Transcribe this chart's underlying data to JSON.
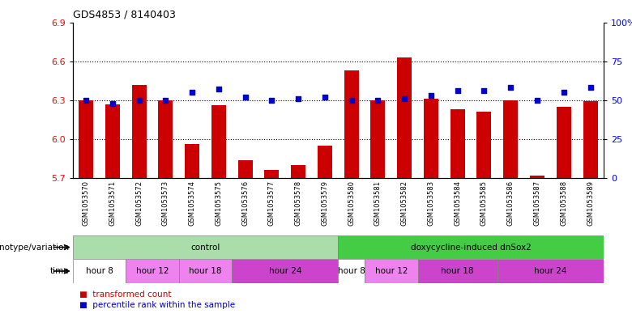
{
  "title": "GDS4853 / 8140403",
  "samples": [
    "GSM1053570",
    "GSM1053571",
    "GSM1053572",
    "GSM1053573",
    "GSM1053574",
    "GSM1053575",
    "GSM1053576",
    "GSM1053577",
    "GSM1053578",
    "GSM1053579",
    "GSM1053580",
    "GSM1053581",
    "GSM1053582",
    "GSM1053583",
    "GSM1053584",
    "GSM1053585",
    "GSM1053586",
    "GSM1053587",
    "GSM1053588",
    "GSM1053589"
  ],
  "bar_values": [
    6.3,
    6.27,
    6.42,
    6.3,
    5.96,
    6.26,
    5.84,
    5.76,
    5.8,
    5.95,
    6.53,
    6.3,
    6.63,
    6.31,
    6.23,
    6.21,
    6.3,
    5.72,
    6.25,
    6.29
  ],
  "dot_values": [
    50,
    48,
    50,
    50,
    55,
    57,
    52,
    50,
    51,
    52,
    50,
    50,
    51,
    53,
    56,
    56,
    58,
    50,
    55,
    58
  ],
  "ylim_left": [
    5.7,
    6.9
  ],
  "ylim_right": [
    0,
    100
  ],
  "yticks_left": [
    5.7,
    6.0,
    6.3,
    6.6,
    6.9
  ],
  "yticks_right": [
    0,
    25,
    50,
    75,
    100
  ],
  "bar_color": "#cc0000",
  "dot_color": "#0000cc",
  "genotype_groups": [
    {
      "label": "control",
      "start": 0,
      "end": 10,
      "color": "#aaddaa"
    },
    {
      "label": "doxycycline-induced dnSox2",
      "start": 10,
      "end": 20,
      "color": "#44cc44"
    }
  ],
  "time_groups": [
    {
      "label": "hour 8",
      "start": 0,
      "end": 2,
      "color": "#ffffff"
    },
    {
      "label": "hour 12",
      "start": 2,
      "end": 4,
      "color": "#ee82ee"
    },
    {
      "label": "hour 18",
      "start": 4,
      "end": 6,
      "color": "#ee82ee"
    },
    {
      "label": "hour 24",
      "start": 6,
      "end": 10,
      "color": "#cc44cc"
    },
    {
      "label": "hour 8",
      "start": 10,
      "end": 11,
      "color": "#ffffff"
    },
    {
      "label": "hour 12",
      "start": 11,
      "end": 13,
      "color": "#ee82ee"
    },
    {
      "label": "hour 18",
      "start": 13,
      "end": 16,
      "color": "#cc44cc"
    },
    {
      "label": "hour 24",
      "start": 16,
      "end": 20,
      "color": "#cc44cc"
    }
  ],
  "genotype_label": "genotype/variation",
  "time_label": "time",
  "legend_items": [
    {
      "label": "transformed count",
      "color": "#cc0000"
    },
    {
      "label": "percentile rank within the sample",
      "color": "#0000cc"
    }
  ],
  "grid_yticks": [
    6.0,
    6.3,
    6.6
  ]
}
